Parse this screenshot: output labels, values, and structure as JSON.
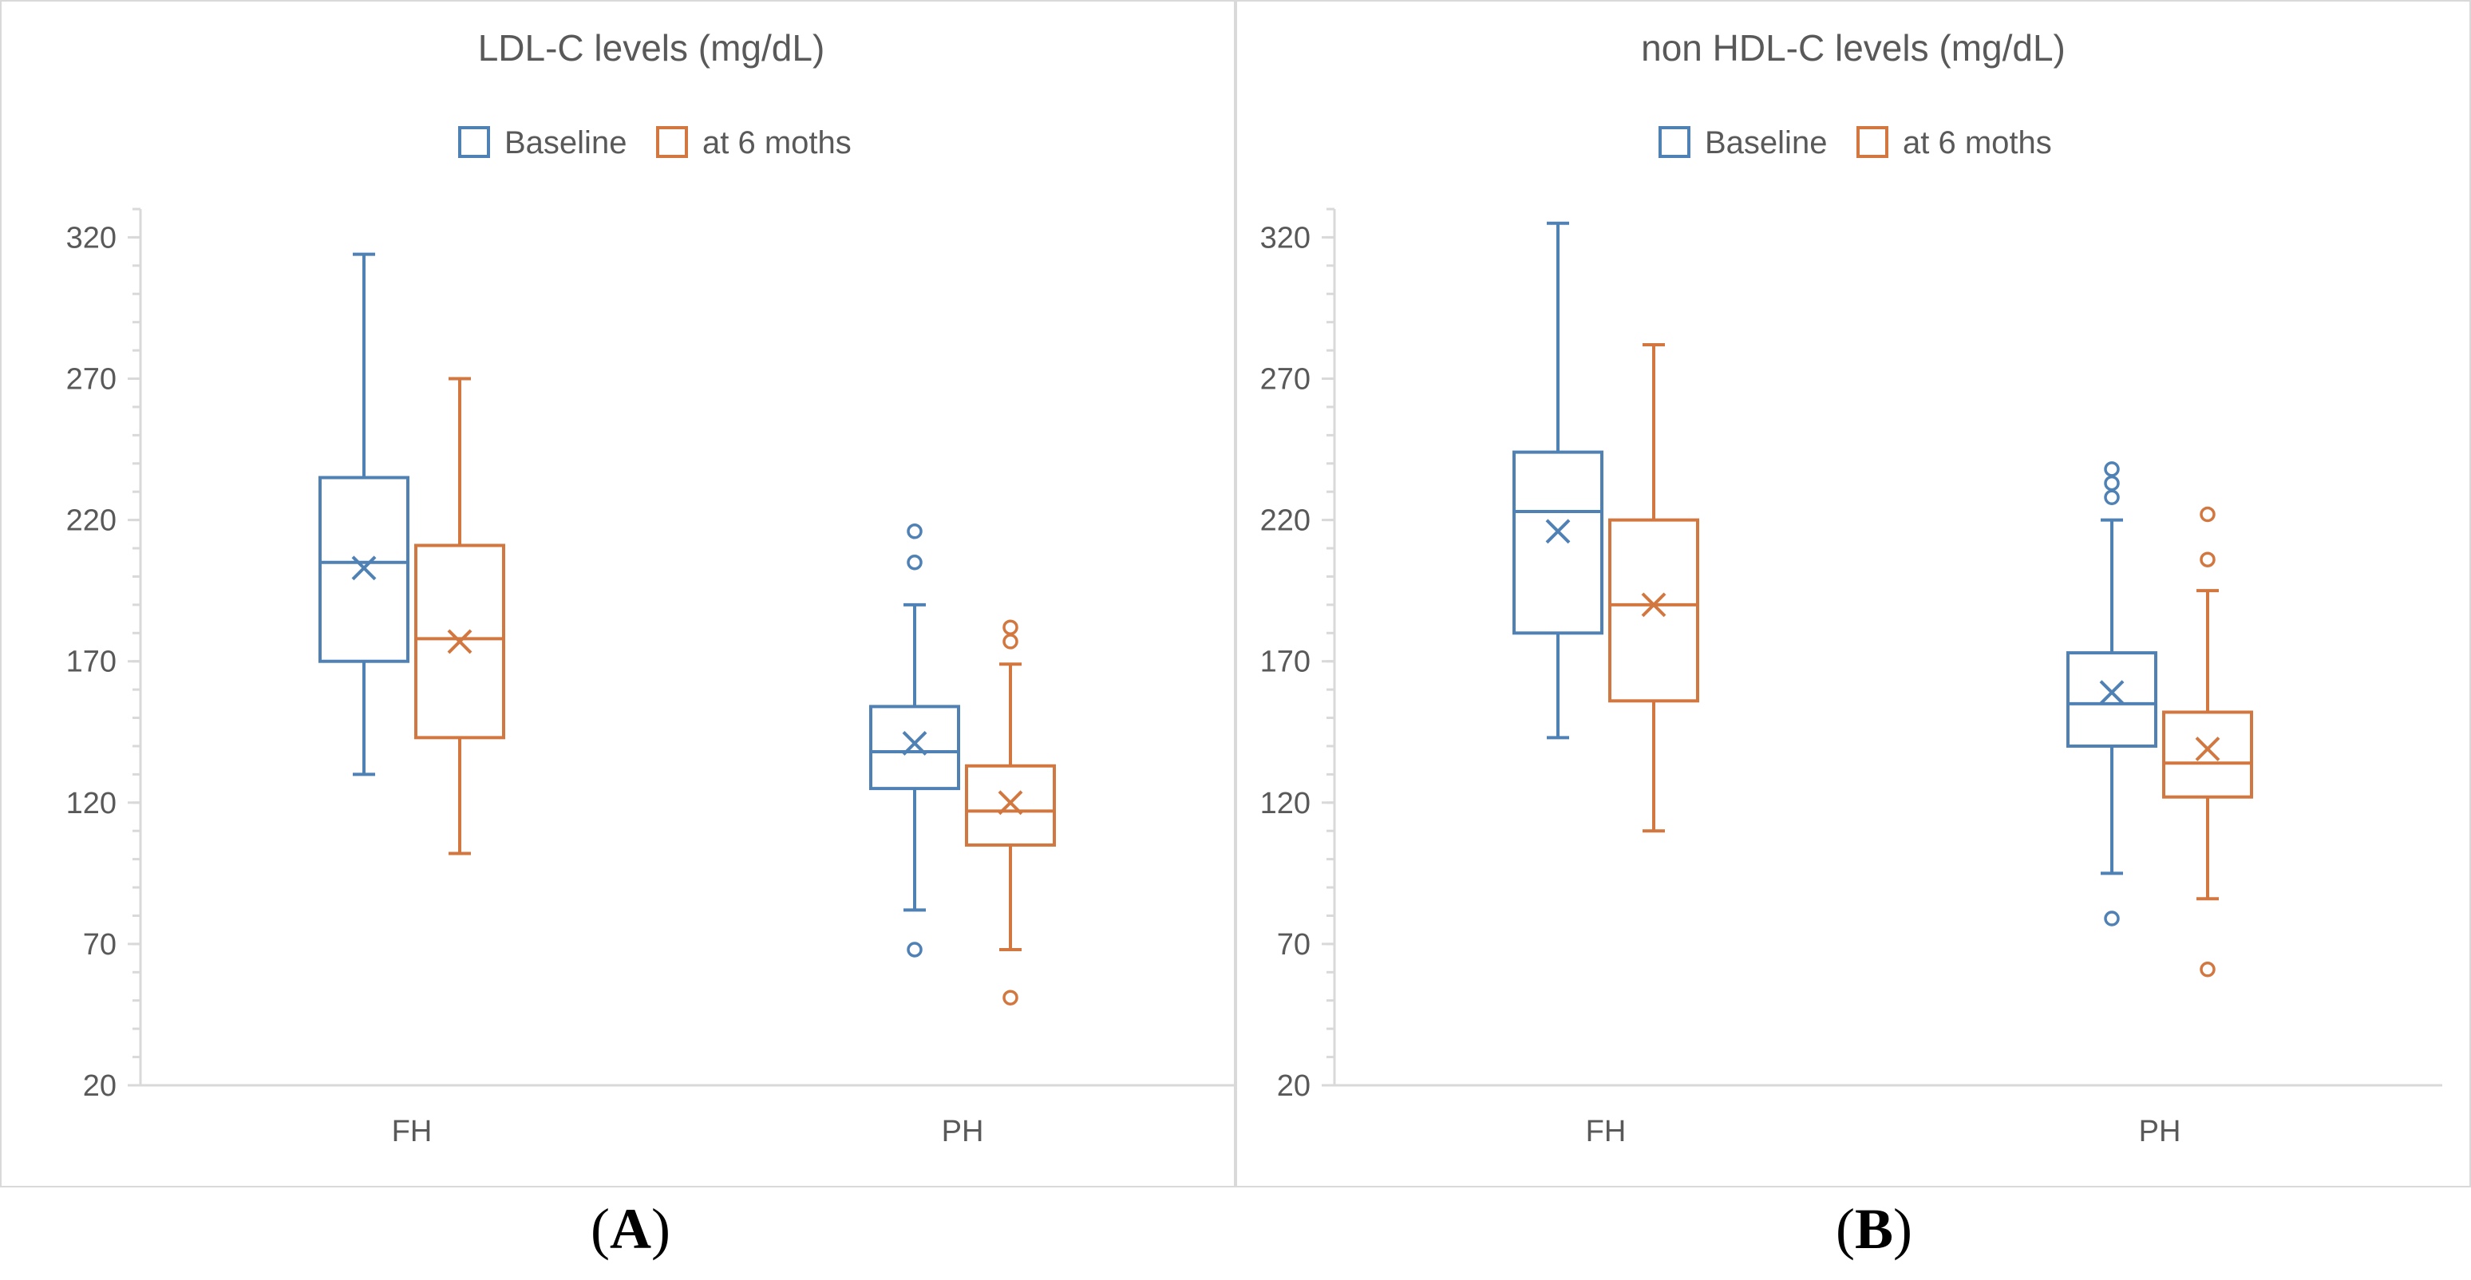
{
  "figure": {
    "panels": [
      "A",
      "B"
    ]
  },
  "colors": {
    "baseline": "#4f81b4",
    "followup": "#d2773f",
    "axis": "#d9d9d9",
    "text": "#595959"
  },
  "chart_data": [
    {
      "panel": "A",
      "type": "box",
      "title": "LDL-C levels (mg/dL)",
      "legend_position": "top-center",
      "categories": [
        "FH",
        "PH"
      ],
      "ylim": [
        20,
        330
      ],
      "yticks": [
        20,
        70,
        120,
        170,
        220,
        270,
        320
      ],
      "xlabel": "",
      "ylabel": "",
      "series": [
        {
          "name": "Baseline",
          "color": "#4f81b4",
          "boxes": [
            {
              "category": "FH",
              "min": 130,
              "q1": 170,
              "median": 205,
              "q3": 235,
              "max": 314,
              "mean": 203,
              "outliers": []
            },
            {
              "category": "PH",
              "min": 82,
              "q1": 125,
              "median": 138,
              "q3": 154,
              "max": 190,
              "mean": 141,
              "outliers": [
                216,
                205,
                68
              ]
            }
          ]
        },
        {
          "name": "at 6 moths",
          "color": "#d2773f",
          "boxes": [
            {
              "category": "FH",
              "min": 102,
              "q1": 143,
              "median": 178,
              "q3": 211,
              "max": 270,
              "mean": 177,
              "outliers": []
            },
            {
              "category": "PH",
              "min": 68,
              "q1": 105,
              "median": 117,
              "q3": 133,
              "max": 169,
              "mean": 120,
              "outliers": [
                182,
                177,
                51
              ]
            }
          ]
        }
      ]
    },
    {
      "panel": "B",
      "type": "box",
      "title": "non HDL-C levels (mg/dL)",
      "legend_position": "top-center",
      "categories": [
        "FH",
        "PH"
      ],
      "ylim": [
        20,
        330
      ],
      "yticks": [
        20,
        70,
        120,
        170,
        220,
        270,
        320
      ],
      "xlabel": "",
      "ylabel": "",
      "series": [
        {
          "name": "Baseline",
          "color": "#4f81b4",
          "boxes": [
            {
              "category": "FH",
              "min": 143,
              "q1": 180,
              "median": 223,
              "q3": 244,
              "max": 325,
              "mean": 216,
              "outliers": []
            },
            {
              "category": "PH",
              "min": 95,
              "q1": 140,
              "median": 155,
              "q3": 173,
              "max": 220,
              "mean": 159,
              "outliers": [
                238,
                233,
                228,
                79
              ]
            }
          ]
        },
        {
          "name": "at 6 moths",
          "color": "#d2773f",
          "boxes": [
            {
              "category": "FH",
              "min": 110,
              "q1": 156,
              "median": 190,
              "q3": 220,
              "max": 282,
              "mean": 190,
              "outliers": []
            },
            {
              "category": "PH",
              "min": 86,
              "q1": 122,
              "median": 134,
              "q3": 152,
              "max": 195,
              "mean": 139,
              "outliers": [
                222,
                206,
                61
              ]
            }
          ]
        }
      ]
    }
  ]
}
